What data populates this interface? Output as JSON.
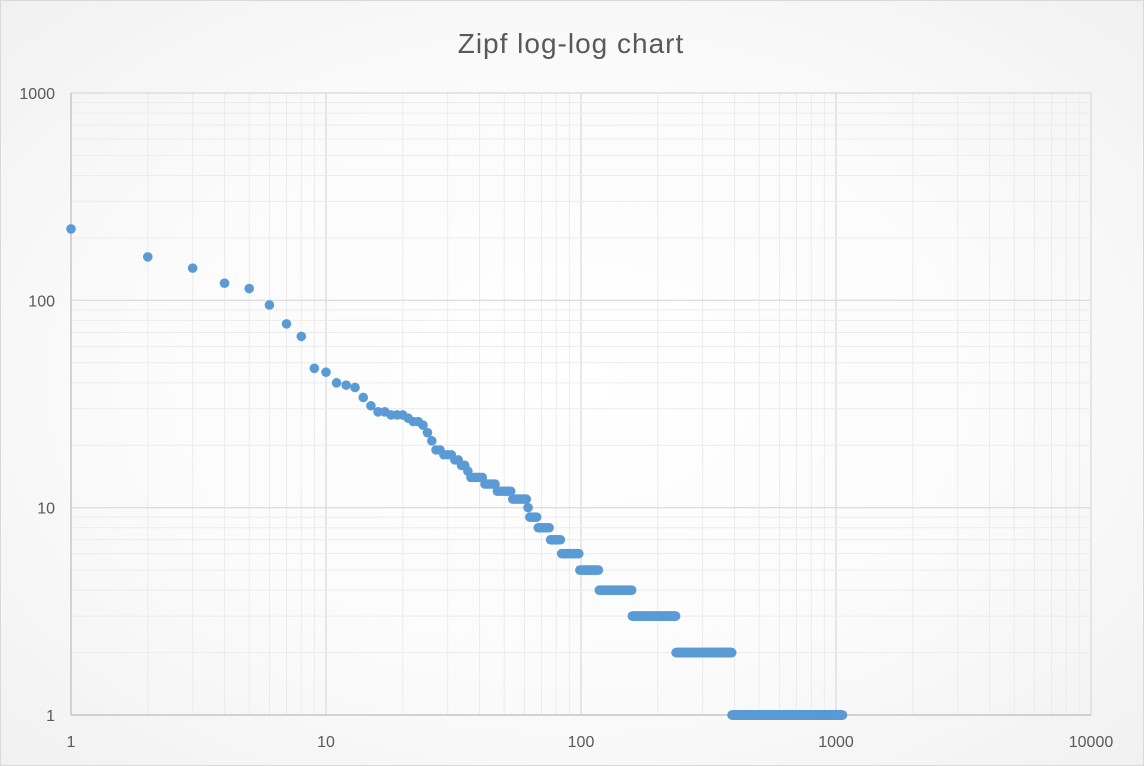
{
  "chart_data": {
    "type": "scatter",
    "title": "Zipf log-log chart",
    "xlabel": "",
    "ylabel": "",
    "x_scale": "log",
    "y_scale": "log",
    "xlim": [
      1,
      10000
    ],
    "ylim": [
      1,
      1000
    ],
    "grid": "major and minor",
    "legend": "none",
    "x_ticks": [
      "1",
      "10",
      "100",
      "1000",
      "10000"
    ],
    "y_ticks": [
      "1",
      "10",
      "100",
      "1000"
    ],
    "marker_color": "#5b9bd5",
    "points": [
      [
        1,
        221
      ],
      [
        2,
        162
      ],
      [
        3,
        143
      ],
      [
        4,
        121
      ],
      [
        5,
        114
      ],
      [
        6,
        95
      ],
      [
        7,
        77
      ],
      [
        8,
        67
      ],
      [
        9,
        47
      ],
      [
        10,
        45
      ],
      [
        11,
        40
      ],
      [
        12,
        39
      ],
      [
        13,
        38
      ],
      [
        14,
        34
      ],
      [
        15,
        31
      ],
      [
        16,
        29
      ],
      [
        17,
        29
      ],
      [
        18,
        28
      ],
      [
        19,
        28
      ],
      [
        20,
        28
      ],
      [
        21,
        27
      ],
      [
        22,
        26
      ],
      [
        23,
        26
      ],
      [
        24,
        25
      ],
      [
        25,
        23
      ],
      [
        26,
        21
      ],
      [
        27,
        19
      ],
      [
        28,
        19
      ],
      [
        29,
        18
      ],
      [
        30,
        18
      ],
      [
        31,
        18
      ],
      [
        32,
        17
      ],
      [
        33,
        17
      ],
      [
        34,
        16
      ],
      [
        35,
        16
      ],
      [
        36,
        15
      ],
      [
        37,
        14
      ],
      [
        38,
        14
      ],
      [
        39,
        14
      ],
      [
        40,
        14
      ],
      [
        41,
        14
      ],
      [
        42,
        13
      ],
      [
        43,
        13
      ],
      [
        44,
        13
      ],
      [
        45,
        13
      ],
      [
        46,
        13
      ],
      [
        47,
        12
      ],
      [
        48,
        12
      ],
      [
        49,
        12
      ],
      [
        50,
        12
      ],
      [
        51,
        12
      ],
      [
        52,
        12
      ],
      [
        53,
        12
      ],
      [
        54,
        11
      ],
      [
        55,
        11
      ],
      [
        56,
        11
      ],
      [
        57,
        11
      ],
      [
        58,
        11
      ],
      [
        59,
        11
      ],
      [
        60,
        11
      ],
      [
        61,
        11
      ],
      [
        62,
        10
      ],
      [
        63,
        9
      ],
      [
        64,
        9
      ],
      [
        65,
        9
      ],
      [
        66,
        9
      ],
      [
        67,
        9
      ],
      [
        68,
        8
      ],
      [
        69,
        8
      ],
      [
        70,
        8
      ],
      [
        71,
        8
      ],
      [
        72,
        8
      ],
      [
        73,
        8
      ],
      [
        74,
        8
      ],
      [
        75,
        8
      ],
      [
        76,
        7
      ],
      [
        77,
        7
      ],
      [
        78,
        7
      ],
      [
        79,
        7
      ],
      [
        80,
        7
      ],
      [
        81,
        7
      ],
      [
        82,
        7
      ],
      [
        83,
        7
      ]
    ],
    "flat_runs": [
      {
        "y": 6,
        "x_from": 84,
        "x_to": 98
      },
      {
        "y": 5,
        "x_from": 99,
        "x_to": 117
      },
      {
        "y": 4,
        "x_from": 118,
        "x_to": 158
      },
      {
        "y": 3,
        "x_from": 159,
        "x_to": 235
      },
      {
        "y": 2,
        "x_from": 236,
        "x_to": 390
      },
      {
        "y": 1,
        "x_from": 391,
        "x_to": 1060
      }
    ]
  }
}
